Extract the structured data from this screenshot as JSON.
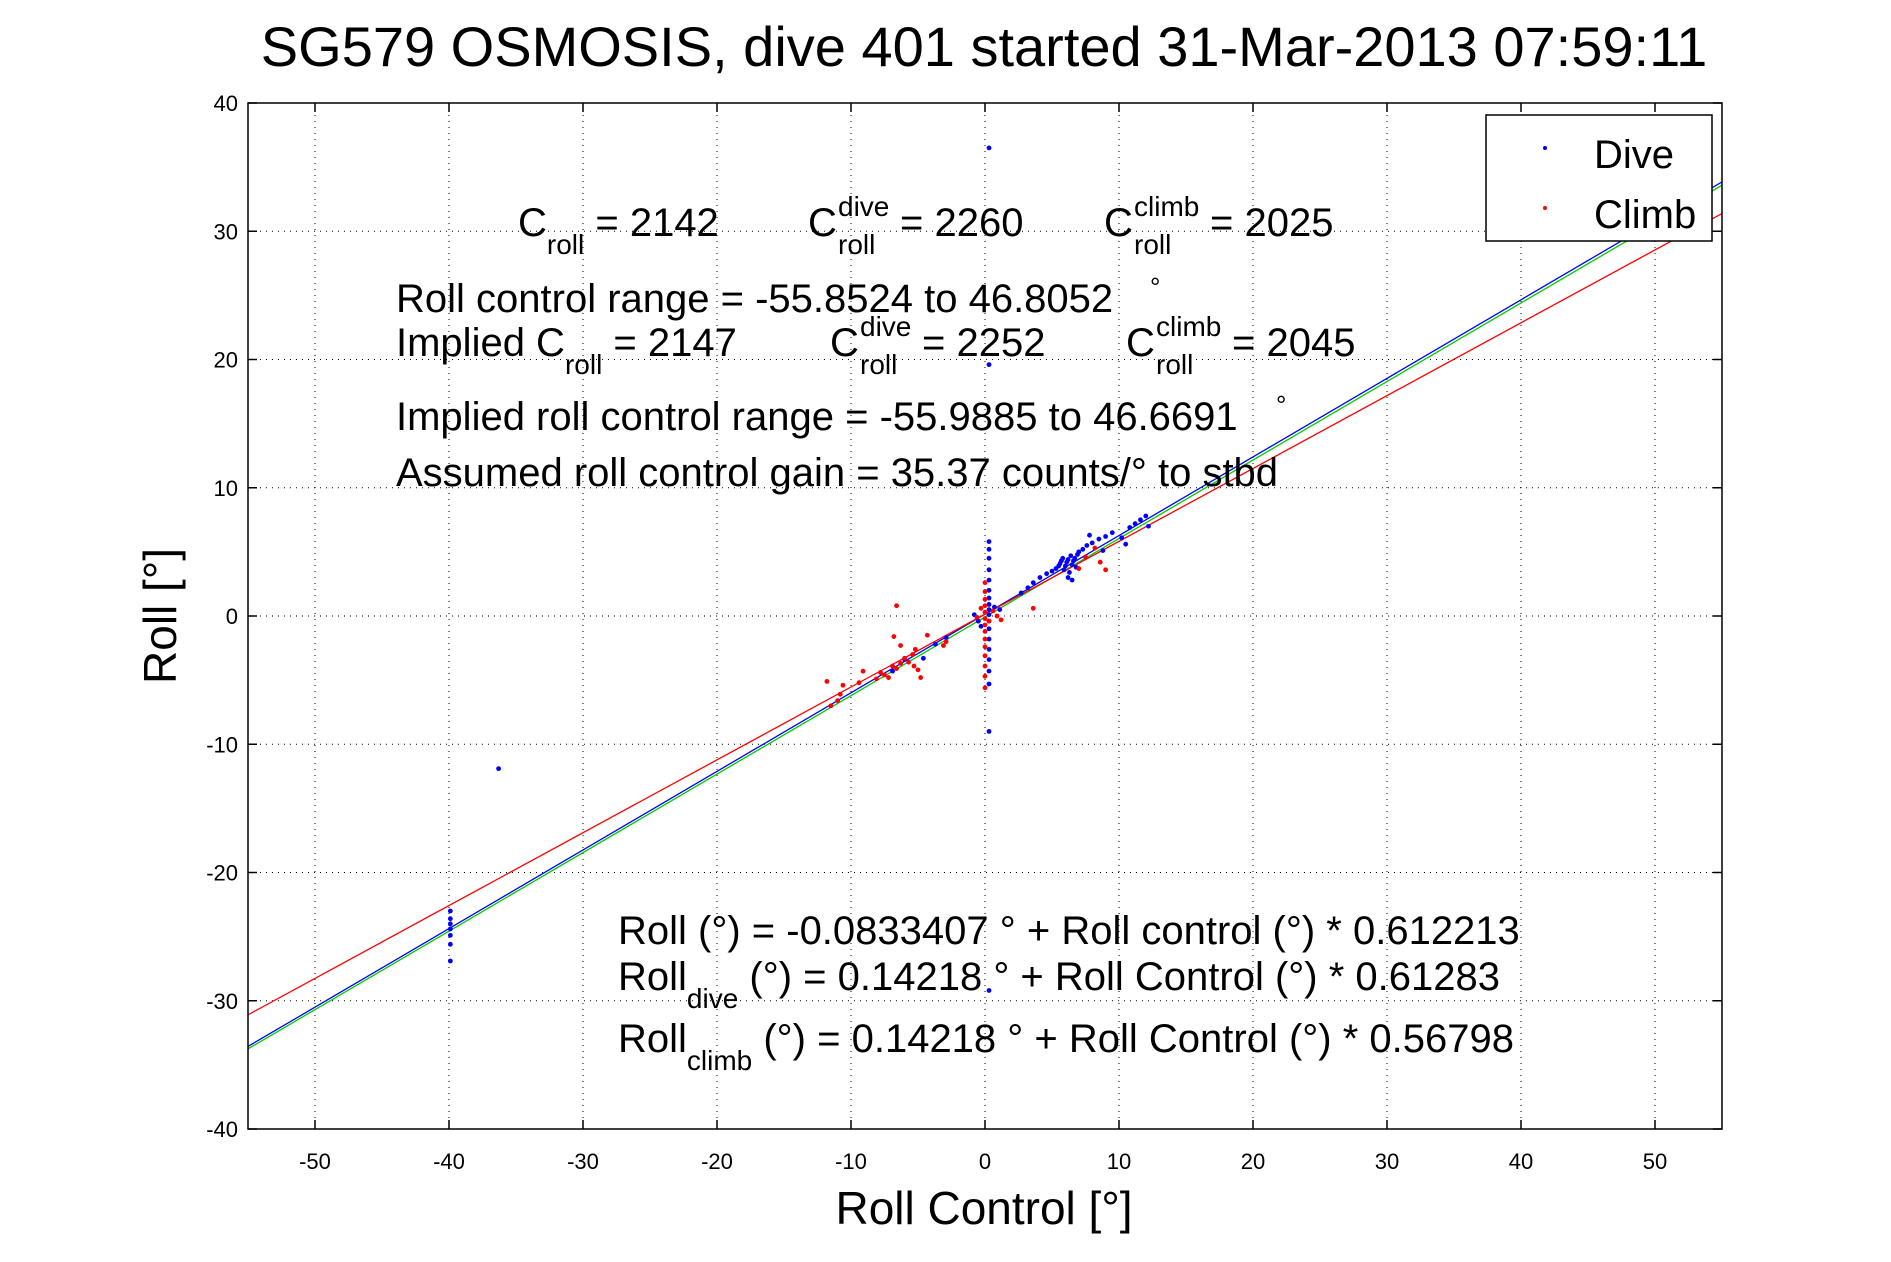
{
  "chart_data": {
    "type": "scatter",
    "title": "SG579 OSMOSIS, dive 401 started 31-Mar-2013 07:59:11",
    "xlabel": "Roll Control [°]",
    "ylabel": "Roll [°]",
    "xlim": [
      -55,
      55
    ],
    "ylim": [
      -40,
      40
    ],
    "xticks": [
      -50,
      -40,
      -30,
      -20,
      -10,
      0,
      10,
      20,
      30,
      40,
      50
    ],
    "yticks": [
      -40,
      -30,
      -20,
      -10,
      0,
      10,
      20,
      30,
      40
    ],
    "grid": true,
    "legend_position": "top-right",
    "colors": {
      "dive": "#0000ff",
      "climb": "#ff0000",
      "fit_all": "#00cc00",
      "fit_dive_line": "#00bfff"
    },
    "series": [
      {
        "name": "Dive",
        "color": "#0000ff",
        "points": [
          [
            -39.9,
            -23.0
          ],
          [
            -39.9,
            -23.6
          ],
          [
            -39.9,
            -24.0
          ],
          [
            -39.9,
            -24.4
          ],
          [
            -39.9,
            -24.9
          ],
          [
            -39.9,
            -25.6
          ],
          [
            -39.9,
            -26.9
          ],
          [
            -36.3,
            -11.9
          ],
          [
            0.3,
            36.5
          ],
          [
            0.3,
            19.6
          ],
          [
            0.3,
            5.8
          ],
          [
            0.3,
            5.2
          ],
          [
            0.3,
            4.5
          ],
          [
            0.3,
            3.6
          ],
          [
            0.3,
            2.8
          ],
          [
            0.3,
            2.0
          ],
          [
            0.3,
            1.4
          ],
          [
            0.3,
            0.9
          ],
          [
            0.3,
            0.5
          ],
          [
            0.3,
            0.1
          ],
          [
            0.3,
            -0.4
          ],
          [
            0.3,
            -1.0
          ],
          [
            0.3,
            -1.8
          ],
          [
            0.3,
            -2.6
          ],
          [
            0.3,
            -3.4
          ],
          [
            0.3,
            -4.3
          ],
          [
            0.3,
            -5.3
          ],
          [
            0.3,
            -9.0
          ],
          [
            0.3,
            -29.2
          ],
          [
            -0.5,
            -0.4
          ],
          [
            -0.8,
            0.1
          ],
          [
            -0.3,
            -0.8
          ],
          [
            0.7,
            0.7
          ],
          [
            1.1,
            0.5
          ],
          [
            -2.9,
            -1.7
          ],
          [
            -4.6,
            -3.3
          ],
          [
            -6.0,
            -3.4
          ],
          [
            -6.9,
            -4.3
          ],
          [
            -3.7,
            -2.2
          ],
          [
            2.7,
            1.8
          ],
          [
            3.2,
            2.2
          ],
          [
            3.6,
            2.6
          ],
          [
            4.1,
            3.0
          ],
          [
            4.6,
            3.3
          ],
          [
            5.0,
            3.5
          ],
          [
            5.3,
            3.7
          ],
          [
            5.5,
            3.9
          ],
          [
            5.6,
            4.1
          ],
          [
            5.7,
            4.3
          ],
          [
            5.8,
            4.5
          ],
          [
            5.9,
            3.6
          ],
          [
            6.0,
            3.9
          ],
          [
            6.1,
            4.2
          ],
          [
            6.2,
            4.4
          ],
          [
            6.3,
            3.4
          ],
          [
            6.4,
            4.7
          ],
          [
            6.5,
            4.0
          ],
          [
            6.6,
            4.3
          ],
          [
            6.7,
            4.5
          ],
          [
            6.8,
            3.8
          ],
          [
            6.9,
            4.8
          ],
          [
            7.0,
            5.0
          ],
          [
            7.3,
            5.2
          ],
          [
            7.6,
            5.5
          ],
          [
            8.0,
            5.7
          ],
          [
            8.5,
            6.0
          ],
          [
            9.0,
            6.2
          ],
          [
            9.5,
            6.5
          ],
          [
            10.2,
            6.1
          ],
          [
            10.8,
            6.9
          ],
          [
            11.2,
            7.2
          ],
          [
            11.6,
            7.5
          ],
          [
            12.0,
            7.8
          ],
          [
            6.2,
            3.0
          ],
          [
            6.5,
            2.8
          ],
          [
            7.8,
            6.3
          ],
          [
            8.8,
            5.1
          ],
          [
            10.5,
            5.6
          ],
          [
            12.2,
            7.0
          ]
        ]
      },
      {
        "name": "Climb",
        "color": "#ff0000",
        "points": [
          [
            -11.5,
            -7.0
          ],
          [
            -11.0,
            -6.6
          ],
          [
            -10.8,
            -6.1
          ],
          [
            -10.6,
            -5.4
          ],
          [
            -11.8,
            -5.1
          ],
          [
            -8.1,
            -4.9
          ],
          [
            -7.8,
            -4.4
          ],
          [
            -7.5,
            -4.6
          ],
          [
            -7.2,
            -4.8
          ],
          [
            -6.9,
            -3.9
          ],
          [
            -6.6,
            -4.1
          ],
          [
            -6.3,
            -3.7
          ],
          [
            -6.0,
            -3.3
          ],
          [
            -5.7,
            -3.6
          ],
          [
            -5.4,
            -3.0
          ],
          [
            -5.2,
            -2.6
          ],
          [
            -5.0,
            -4.2
          ],
          [
            -4.8,
            -4.8
          ],
          [
            -5.3,
            -3.9
          ],
          [
            -6.3,
            -2.3
          ],
          [
            -6.8,
            -1.6
          ],
          [
            -4.3,
            -1.5
          ],
          [
            -9.1,
            -4.3
          ],
          [
            -9.4,
            -5.2
          ],
          [
            -6.6,
            0.8
          ],
          [
            -3.1,
            -2.3
          ],
          [
            -2.9,
            -2.0
          ],
          [
            0.0,
            2.6
          ],
          [
            0.0,
            1.9
          ],
          [
            0.0,
            1.3
          ],
          [
            0.0,
            0.8
          ],
          [
            0.0,
            0.3
          ],
          [
            0.0,
            -0.2
          ],
          [
            0.0,
            -0.7
          ],
          [
            0.0,
            -1.2
          ],
          [
            0.0,
            -1.8
          ],
          [
            0.0,
            -2.4
          ],
          [
            0.0,
            -3.1
          ],
          [
            0.0,
            -3.9
          ],
          [
            0.0,
            -4.7
          ],
          [
            0.0,
            -5.6
          ],
          [
            0.3,
            -0.4
          ],
          [
            0.6,
            0.4
          ],
          [
            0.9,
            0.0
          ],
          [
            1.2,
            -0.3
          ],
          [
            -0.3,
            0.6
          ],
          [
            -0.6,
            -0.1
          ],
          [
            3.6,
            0.6
          ],
          [
            7.5,
            4.6
          ],
          [
            8.2,
            5.3
          ],
          [
            8.6,
            4.2
          ],
          [
            9.0,
            3.6
          ],
          [
            7.0,
            3.7
          ]
        ]
      }
    ],
    "fits": [
      {
        "label": "Roll (°) = -0.0833407 ° + Roll control (°) * 0.612213",
        "intercept": -0.0833407,
        "slope": 0.612213,
        "color": "#00cc00"
      },
      {
        "label": "Roll_dive (°) = 0.14218 ° + Roll Control (°) * 0.61283",
        "intercept": 0.14218,
        "slope": 0.61283,
        "color": "#0000ff"
      },
      {
        "label": "Roll_climb (°) = 0.14218 ° + Roll Control (°) * 0.56798",
        "intercept": 0.14218,
        "slope": 0.56798,
        "color": "#ff0000"
      }
    ],
    "annotations": {
      "c_roll": "C",
      "c_roll_sub": "roll",
      "c_roll_value": " = 2142",
      "c_dive": "C",
      "c_dive_sup": "dive",
      "c_dive_sub": "roll",
      "c_dive_value": " = 2260",
      "c_climb": "C",
      "c_climb_sup": "climb",
      "c_climb_sub": "roll",
      "c_climb_value": " = 2025",
      "range": "Roll control range = -55.8524 to 46.8052",
      "range_deg": "°",
      "implied_prefix": "Implied C",
      "implied_sub": "roll",
      "implied_value": " = 2147",
      "implied_dive": "C",
      "implied_dive_sup": "dive",
      "implied_dive_sub": "roll",
      "implied_dive_value": " = 2252",
      "implied_climb": "C",
      "implied_climb_sup": "climb",
      "implied_climb_sub": "roll",
      "implied_climb_value": " = 2045",
      "implied_range": "Implied roll control range = -55.9885 to 46.6691",
      "implied_range_deg": "°",
      "gain": "Assumed roll control gain = 35.37 counts/° to stbd",
      "eq1": "Roll (°) = -0.0833407 ° + Roll control (°) * 0.612213",
      "eq2_main": "Roll",
      "eq2_sub": "dive",
      "eq2_rest": " (°) = 0.14218 ° + Roll Control (°) * 0.61283",
      "eq3_main": "Roll",
      "eq3_sub": "climb",
      "eq3_rest": " (°) = 0.14218 ° + Roll Control (°) * 0.56798"
    }
  }
}
